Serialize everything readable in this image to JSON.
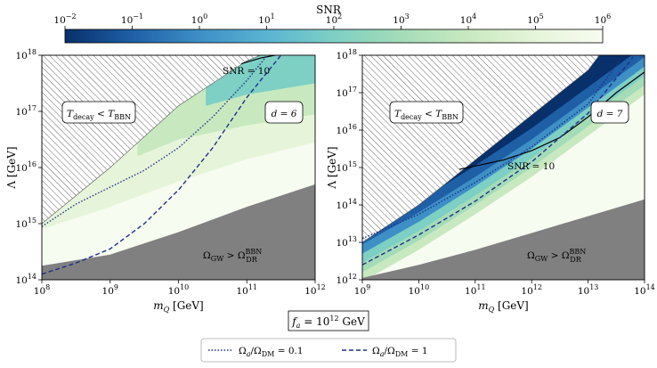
{
  "colorbar": {
    "label": "SNR",
    "scale": "log",
    "range": [
      0.01,
      1000000
    ],
    "ticks": [
      "10^-2",
      "10^-1",
      "10^0",
      "10^1",
      "10^2",
      "10^3",
      "10^4",
      "10^5",
      "10^6"
    ],
    "colors": [
      "#08306b",
      "#1f5fa6",
      "#3d8fc6",
      "#5ab4d2",
      "#7ecfc4",
      "#a4dcb8",
      "#c8e9c0",
      "#e6f5d9",
      "#f7fcf0"
    ]
  },
  "fa_label": {
    "main": "f",
    "sub": "a",
    "eq": " = 10",
    "sup": "12",
    "unit": " GeV"
  },
  "legend": [
    {
      "style": "dotted",
      "text": "Ω_a/Ω_DM = 0.1",
      "main": "Ω",
      "sub": "a",
      "mid": "/Ω",
      "sub2": "DM",
      "rest": " = 0.1",
      "color": "#1f2f8a"
    },
    {
      "style": "dashed",
      "text": "Ω_a/Ω_DM = 1",
      "main": "Ω",
      "sub": "a",
      "mid": "/Ω",
      "sub2": "DM",
      "rest": " = 1",
      "color": "#1f2f8a"
    }
  ],
  "panels": [
    {
      "xlabel": "m_Q [GeV]",
      "ylabel": "Λ [GeV]",
      "x_ticks": [
        8,
        9,
        10,
        11,
        12
      ],
      "y_ticks": [
        14,
        15,
        16,
        17,
        18
      ],
      "d_label": "d = 6",
      "snr_label": "SNR = 10",
      "bbn_label": "T_decay < T_BBN",
      "gw_label": "Ω_GW > Ω_DR^BBN"
    },
    {
      "xlabel": "m_Q [GeV]",
      "ylabel": "Λ [GeV]",
      "x_ticks": [
        9,
        10,
        11,
        12,
        13,
        14
      ],
      "y_ticks": [
        12,
        13,
        14,
        15,
        16,
        17,
        18
      ],
      "d_label": "d = 7",
      "snr_label": "SNR = 10",
      "bbn_label": "T_decay < T_BBN",
      "gw_label": "Ω_GW > Ω_DR^BBN"
    }
  ],
  "chart_data": [
    {
      "type": "area",
      "x_scale": "log10",
      "y_scale": "log10",
      "xlim": [
        8,
        12
      ],
      "ylim": [
        14,
        18
      ],
      "xlabel": "m_Q [GeV]",
      "ylabel": "Λ [GeV]",
      "regions": [
        {
          "name": "T_decay < T_BBN",
          "fill": "hatched",
          "boundary_x": [
            8,
            9,
            10,
            11,
            11.2
          ],
          "boundary_y": [
            15.0,
            16.0,
            17.1,
            17.9,
            18.0
          ]
        },
        {
          "name": "Ω_GW > Ω_DR^BBN",
          "fill": "#808080",
          "boundary_x": [
            8,
            9,
            10,
            11,
            12
          ],
          "boundary_y": [
            14.25,
            14.45,
            14.85,
            15.3,
            15.7
          ]
        },
        {
          "name": "SNR 1e4-1e5",
          "fill": "#e6f5d9",
          "lower_x": [
            8,
            9,
            10,
            11,
            12
          ],
          "lower_y": [
            14.9,
            15.3,
            15.75,
            16.15,
            16.45
          ]
        },
        {
          "name": "SNR 1e3-1e4",
          "fill": "#c8e9c0",
          "lower_x": [
            9.4,
            10,
            11,
            12
          ],
          "lower_y": [
            16.2,
            16.5,
            16.75,
            16.95
          ]
        },
        {
          "name": "SNR 1e2-1e3",
          "fill": "#7ecfc4",
          "lower_x": [
            10.4,
            11,
            12
          ],
          "lower_y": [
            17.1,
            17.3,
            17.5
          ]
        }
      ],
      "lines": [
        {
          "name": "SNR = 10",
          "style": "solid",
          "x": [
            10.92,
            11.2,
            11.5,
            12
          ],
          "y": [
            17.85,
            17.95,
            18.02,
            18.1
          ]
        },
        {
          "name": "Ω_a/Ω_DM = 0.1",
          "style": "dotted",
          "x": [
            8,
            8.5,
            9,
            9.5,
            10,
            10.5,
            11,
            11.3
          ],
          "y": [
            14.95,
            15.35,
            15.65,
            15.95,
            16.35,
            16.9,
            17.55,
            18.0
          ]
        },
        {
          "name": "Ω_a/Ω_DM = 1",
          "style": "dashed",
          "x": [
            8,
            8.5,
            9,
            9.5,
            10,
            10.5,
            11,
            11.5
          ],
          "y": [
            14.1,
            14.3,
            14.55,
            15.0,
            15.6,
            16.35,
            17.25,
            18.0
          ]
        }
      ]
    },
    {
      "type": "area",
      "x_scale": "log10",
      "y_scale": "log10",
      "xlim": [
        9,
        14
      ],
      "ylim": [
        12,
        18
      ],
      "xlabel": "m_Q [GeV]",
      "ylabel": "Λ [GeV]",
      "regions": [
        {
          "name": "T_decay < T_BBN",
          "fill": "hatched",
          "boundary_x": [
            9,
            10,
            11,
            12,
            13,
            13.2
          ],
          "boundary_y": [
            13.0,
            14.0,
            15.2,
            16.4,
            17.6,
            18.0
          ]
        },
        {
          "name": "Ω_GW > Ω_DR^BBN",
          "fill": "#808080",
          "boundary_x": [
            9,
            10,
            11,
            12,
            13,
            14
          ],
          "boundary_y": [
            12.05,
            12.4,
            12.8,
            13.25,
            13.7,
            14.15
          ]
        },
        {
          "name": "SNR band outer",
          "fill": "#e6f5d9",
          "note": "band along BBN edge"
        },
        {
          "name": "SNR < 1e-1",
          "fill": "#08306b",
          "lower_x": [
            12.5,
            13,
            13.4
          ],
          "lower_y": [
            16.9,
            17.5,
            18.0
          ]
        }
      ],
      "lines": [
        {
          "name": "SNR = 10",
          "style": "solid",
          "x": [
            10.72,
            11.5,
            12,
            12.5,
            13,
            13.5,
            14
          ],
          "y": [
            14.95,
            15.2,
            15.45,
            15.8,
            16.35,
            17.0,
            17.55
          ]
        },
        {
          "name": "Ω_a/Ω_DM = 0.1",
          "style": "dotted",
          "x": [
            9,
            10,
            11,
            12,
            13,
            13.6
          ],
          "y": [
            13.1,
            13.75,
            14.6,
            15.55,
            16.7,
            17.95
          ]
        },
        {
          "name": "Ω_a/Ω_DM = 1",
          "style": "dashed",
          "x": [
            9,
            10,
            11,
            12,
            13,
            13.8
          ],
          "y": [
            12.4,
            13.2,
            14.1,
            15.15,
            16.45,
            17.95
          ]
        }
      ]
    }
  ]
}
